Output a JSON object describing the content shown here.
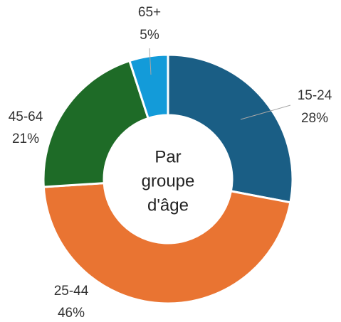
{
  "chart_data": {
    "type": "pie",
    "center_text": [
      "Par",
      "groupe",
      "d'âge"
    ],
    "categories": [
      "15-24",
      "25-44",
      "45-64",
      "65+"
    ],
    "values": [
      28,
      46,
      21,
      5
    ],
    "value_labels": [
      "28%",
      "46%",
      "21%",
      "5%"
    ],
    "colors": [
      "#1a5e85",
      "#e97432",
      "#1e6b27",
      "#139bd9"
    ]
  }
}
